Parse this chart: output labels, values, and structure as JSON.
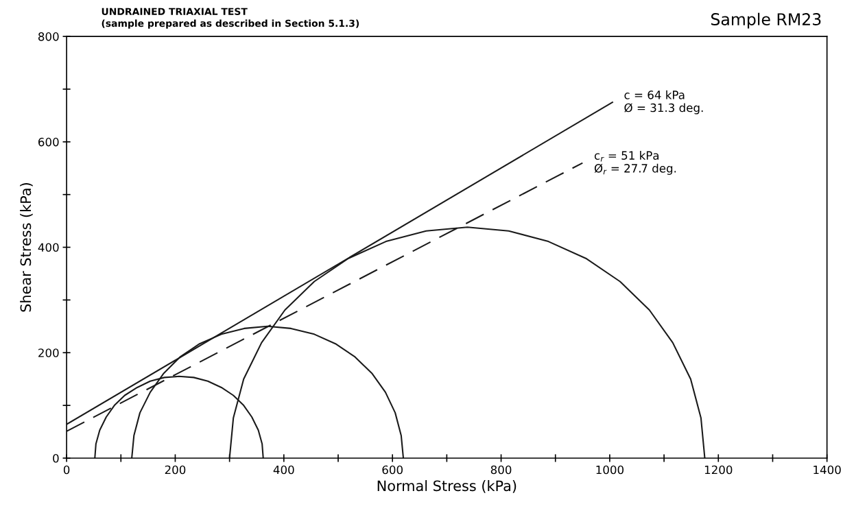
{
  "chart_data": {
    "type": "line",
    "title": "UNDRAINED TRIAXIAL TEST",
    "subtitle": "(sample prepared as described in Section 5.1.3)",
    "xlabel": "Normal Stress (kPa)",
    "ylabel": "Shear Stress (kPa)",
    "annotations": [
      "Sample RM23",
      {
        "text": "c = 64 kPa\nØ = 31.3 deg.",
        "x": 1005,
        "y": 675
      },
      {
        "text": "c$_{r}$ = 51 kPa\nØ$_{r}$ = 27.7 deg.",
        "x": 950,
        "y": 560
      }
    ],
    "series": [
      {
        "color": "#1a1a1a",
        "line_style": "solid",
        "x": [
          362,
          360,
          353,
          341,
          326,
          307,
          285,
          260,
          234,
          207,
          180,
          154,
          130,
          107,
          88,
          73,
          61,
          54,
          52
        ],
        "values": [
          0,
          27,
          53,
          78,
          100,
          119,
          134,
          146,
          153,
          155,
          153,
          146,
          134,
          119,
          100,
          78,
          53,
          27,
          0
        ]
      },
      {
        "color": "#1a1a1a",
        "line_style": "solid",
        "x": [
          620,
          616,
          605,
          587,
          562,
          531,
          495,
          456,
          413,
          370,
          327,
          285,
          245,
          209,
          179,
          154,
          135,
          124,
          120
        ],
        "values": [
          0,
          43,
          86,
          125,
          161,
          192,
          217,
          235,
          246,
          250,
          246,
          235,
          217,
          192,
          161,
          125,
          86,
          43,
          0
        ]
      },
      {
        "color": "#1a1a1a",
        "line_style": "solid",
        "x": [
          1175,
          1168,
          1149,
          1116,
          1073,
          1019,
          956,
          887,
          814,
          738,
          662,
          588,
          519,
          456,
          402,
          359,
          326,
          307,
          300
        ],
        "values": [
          0,
          76,
          150,
          219,
          281,
          335,
          379,
          411,
          431,
          438,
          431,
          411,
          379,
          335,
          281,
          219,
          150,
          76,
          0
        ]
      },
      {
        "color": "#1a1a1a",
        "line_style": "solid",
        "x": [
          0,
          1005
        ],
        "values": [
          64,
          675
        ]
      },
      {
        "color": "#1a1a1a",
        "line_style": "dashed",
        "x": [
          0,
          950
        ],
        "values": [
          51,
          560
        ]
      }
    ],
    "xlim": [
      0,
      1400
    ],
    "ylim": [
      0,
      800
    ],
    "xticks": [
      0,
      {
        "value": 100,
        "label": null
      },
      200,
      {
        "value": 300,
        "label": null
      },
      400,
      {
        "value": 500,
        "label": null
      },
      600,
      {
        "value": 700,
        "label": null
      },
      800,
      {
        "value": 900,
        "label": null
      },
      1000,
      {
        "value": 1100,
        "label": null
      },
      1200,
      {
        "value": 1300,
        "label": null
      },
      1400
    ],
    "yticks": [
      0,
      {
        "value": 100,
        "label": null
      },
      200,
      {
        "value": 300,
        "label": null
      },
      400,
      {
        "value": 500,
        "label": null
      },
      600,
      {
        "value": 700,
        "label": null
      },
      800
    ],
    "grid": false,
    "legend": false,
    "marker": "none"
  }
}
